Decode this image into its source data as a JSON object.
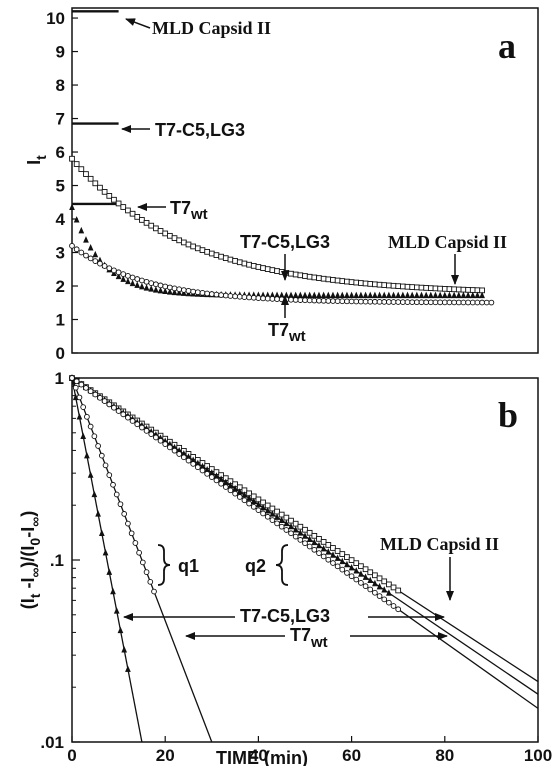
{
  "chart_data": [
    {
      "type": "scatter",
      "panel_label": "a",
      "ylabel": "I",
      "ylabel_sub": "t",
      "ylim": [
        0,
        10.3
      ],
      "xlim": [
        0,
        100
      ],
      "yticks": [
        "0",
        "1",
        "2",
        "3",
        "4",
        "5",
        "6",
        "7",
        "8",
        "9",
        "10"
      ],
      "reference_lines": [
        {
          "name": "MLD Capsid II",
          "y": 10.2,
          "x_end": 10
        },
        {
          "name": "T7-C5,LG3",
          "y": 6.85,
          "x_end": 10
        },
        {
          "name": "T7wt",
          "y": 4.45,
          "x_end": 10
        }
      ],
      "series": [
        {
          "name": "MLD Capsid II",
          "marker": "square",
          "x_end": 88,
          "initial": 5.8,
          "final": 1.75,
          "tau": 25
        },
        {
          "name": "T7-C5,LG3",
          "marker": "triangle",
          "x_end": 88,
          "initial": 4.35,
          "final": 1.72,
          "tau": 6.5
        },
        {
          "name": "T7wt",
          "marker": "circle",
          "x_end": 90,
          "initial": 3.2,
          "final": 1.5,
          "tau": 16
        }
      ],
      "annotations": {
        "mld_ref": "MLD Capsid II",
        "c5_ref": "T7-C5,LG3",
        "wt_ref_main": "T7",
        "wt_ref_sub": "wt",
        "c5_curve": "T7-C5,LG3",
        "mld_curve": "MLD Capsid II",
        "wt_curve_main": "T7",
        "wt_curve_sub": "wt"
      }
    },
    {
      "type": "scatter",
      "panel_label": "b",
      "ylabel_parts": [
        "(I",
        "t",
        " -I",
        "∞",
        ")/(I",
        "0",
        "-I",
        "∞",
        ")"
      ],
      "ylim": [
        0.01,
        1
      ],
      "yscale": "log",
      "xlim": [
        0,
        100
      ],
      "xlabel": "TIME (min)",
      "xticks": [
        "0",
        "20",
        "40",
        "60",
        "80",
        "100"
      ],
      "yticks": [
        "1",
        ".1",
        ".01"
      ],
      "series": [
        {
          "group": "q1",
          "name": "T7-C5,LG3",
          "marker": "triangle",
          "x_end": 12,
          "slope": 0.307
        },
        {
          "group": "q1",
          "name": "T7wt",
          "marker": "circle",
          "x_end": 18,
          "slope": 0.1535
        },
        {
          "group": "q2",
          "name": "MLD Capsid II",
          "marker": "square",
          "x_end": 70,
          "slope": 0.0384
        },
        {
          "group": "q2",
          "name": "T7-C5,LG3",
          "marker": "triangle",
          "x_end": 68,
          "slope": 0.04
        },
        {
          "group": "q2",
          "name": "T7wt",
          "marker": "circle",
          "x_end": 70,
          "slope": 0.0418
        }
      ],
      "annotations": {
        "q1": "q1",
        "q2": "q2",
        "mld": "MLD Capsid II",
        "c5": "T7-C5,LG3",
        "wt_main": "T7",
        "wt_sub": "wt"
      }
    }
  ]
}
